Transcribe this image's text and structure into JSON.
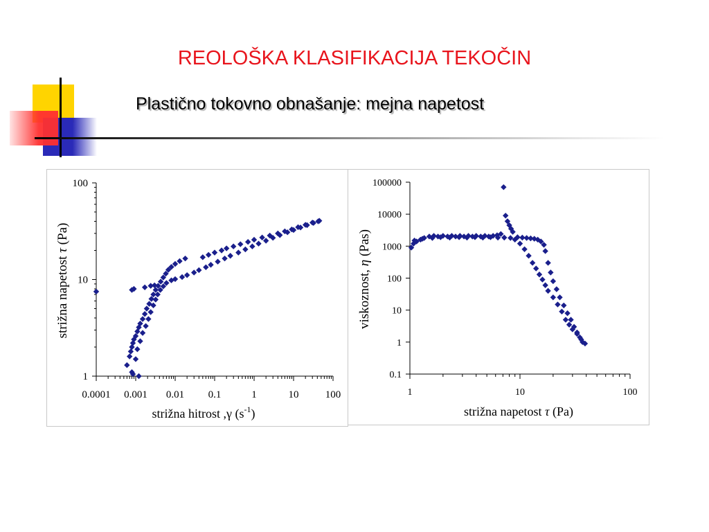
{
  "slide": {
    "title": "REOLOŠKA KLASIFIKACIJA TEKOČIN",
    "subtitle": "Plastično tokovno obnašanje: mejna napetost"
  },
  "colors": {
    "title": "#e8141c",
    "marker": "#1a1f8c",
    "deco_yellow": "#ffd400",
    "deco_red": "#ff3030",
    "deco_blue": "#2a2ab8"
  },
  "chart_data": [
    {
      "type": "scatter",
      "scale": "log-log",
      "xlabel": "strižna hitrost ,γ (s-1)",
      "ylabel": "strižna napetost τ (Pa)",
      "xlim": [
        0.0001,
        100
      ],
      "ylim": [
        1,
        100
      ],
      "xticks": [
        "0.0001",
        "0.001",
        "0.01",
        "0.1",
        "1",
        "10",
        "100"
      ],
      "yticks": [
        "1",
        "10",
        "100"
      ],
      "grid": false,
      "series": [
        {
          "marker": "diamond",
          "points": [
            [
              0.0001,
              7.5
            ],
            [
              0.0008,
              7.8
            ],
            [
              0.0009,
              8.0
            ],
            [
              0.0017,
              8.3
            ],
            [
              0.0024,
              8.6
            ],
            [
              0.003,
              8.7
            ],
            [
              0.0006,
              1.3
            ],
            [
              0.0007,
              1.6
            ],
            [
              0.00075,
              1.8
            ],
            [
              0.0008,
              2.0
            ],
            [
              0.00085,
              2.2
            ],
            [
              0.0009,
              2.4
            ],
            [
              0.001,
              2.6
            ],
            [
              0.0011,
              2.9
            ],
            [
              0.0012,
              3.2
            ],
            [
              0.0013,
              3.5
            ],
            [
              0.0015,
              3.9
            ],
            [
              0.0017,
              4.4
            ],
            [
              0.0019,
              5.0
            ],
            [
              0.0022,
              5.6
            ],
            [
              0.0025,
              6.3
            ],
            [
              0.0028,
              7.0
            ],
            [
              0.0032,
              7.8
            ],
            [
              0.0037,
              8.6
            ],
            [
              0.0043,
              9.5
            ],
            [
              0.005,
              10.5
            ],
            [
              0.0058,
              11.5
            ],
            [
              0.0067,
              12.6
            ],
            [
              0.008,
              13.5
            ],
            [
              0.01,
              14.5
            ],
            [
              0.013,
              15.5
            ],
            [
              0.018,
              16.5
            ],
            [
              0.0008,
              1.1
            ],
            [
              0.00085,
              1.05
            ],
            [
              0.0012,
              1.0
            ],
            [
              0.001,
              1.5
            ],
            [
              0.0011,
              1.9
            ],
            [
              0.0013,
              2.3
            ],
            [
              0.0015,
              2.8
            ],
            [
              0.0018,
              3.3
            ],
            [
              0.0021,
              3.9
            ],
            [
              0.0024,
              4.6
            ],
            [
              0.0028,
              5.4
            ],
            [
              0.0032,
              6.2
            ],
            [
              0.0036,
              7.0
            ],
            [
              0.0042,
              7.8
            ],
            [
              0.005,
              8.5
            ],
            [
              0.006,
              9.2
            ],
            [
              0.008,
              9.8
            ],
            [
              0.01,
              10.1
            ],
            [
              0.015,
              10.6
            ],
            [
              0.02,
              11.1
            ],
            [
              0.03,
              11.8
            ],
            [
              0.04,
              12.5
            ],
            [
              0.06,
              13.4
            ],
            [
              0.08,
              14.2
            ],
            [
              0.12,
              15.3
            ],
            [
              0.18,
              16.5
            ],
            [
              0.25,
              17.6
            ],
            [
              0.4,
              19.0
            ],
            [
              0.6,
              20.5
            ],
            [
              0.9,
              22.0
            ],
            [
              1.3,
              23.5
            ],
            [
              2.0,
              25.2
            ],
            [
              3.0,
              27.0
            ],
            [
              4.5,
              28.8
            ],
            [
              7.0,
              30.8
            ],
            [
              10,
              32.5
            ],
            [
              15,
              34.5
            ],
            [
              22,
              36.5
            ],
            [
              32,
              38.5
            ],
            [
              45,
              40.5
            ],
            [
              0.05,
              17.0
            ],
            [
              0.07,
              18.0
            ],
            [
              0.1,
              19.0
            ],
            [
              0.15,
              20.0
            ],
            [
              0.2,
              21.0
            ],
            [
              0.3,
              22.0
            ],
            [
              0.45,
              23.2
            ],
            [
              0.7,
              24.5
            ],
            [
              1.0,
              25.8
            ],
            [
              1.6,
              27.2
            ],
            [
              2.5,
              28.5
            ],
            [
              4.0,
              30.0
            ],
            [
              6.0,
              31.5
            ],
            [
              9.0,
              33.0
            ],
            [
              13,
              34.8
            ],
            [
              20,
              36.8
            ],
            [
              30,
              38.8
            ],
            [
              42,
              40.0
            ]
          ]
        }
      ]
    },
    {
      "type": "scatter",
      "scale": "log-log",
      "xlabel": "strižna napetost τ (Pa)",
      "ylabel": "viskoznost, η (Pas)",
      "xlim": [
        1,
        100
      ],
      "ylim": [
        0.1,
        100000
      ],
      "xticks": [
        "1",
        "10",
        "100"
      ],
      "yticks": [
        "0.1",
        "1",
        "10",
        "100",
        "1000",
        "10000",
        "100000"
      ],
      "grid": false,
      "series": [
        {
          "marker": "diamond",
          "points": [
            [
              1.03,
              900
            ],
            [
              1.08,
              1200
            ],
            [
              1.15,
              1400
            ],
            [
              1.25,
              1600
            ],
            [
              1.35,
              1800
            ],
            [
              1.5,
              2000
            ],
            [
              1.65,
              2100
            ],
            [
              1.8,
              2000
            ],
            [
              2.0,
              2100
            ],
            [
              2.2,
              2000
            ],
            [
              2.4,
              2100
            ],
            [
              2.6,
              2000
            ],
            [
              2.85,
              2100
            ],
            [
              3.1,
              2000
            ],
            [
              3.4,
              2100
            ],
            [
              3.7,
              2000
            ],
            [
              4.0,
              2100
            ],
            [
              4.4,
              2000
            ],
            [
              4.8,
              2100
            ],
            [
              5.2,
              2000
            ],
            [
              5.7,
              2100
            ],
            [
              6.2,
              2200
            ],
            [
              6.7,
              2400
            ],
            [
              7.1,
              70000
            ],
            [
              7.4,
              9000
            ],
            [
              7.7,
              6000
            ],
            [
              8.0,
              4500
            ],
            [
              8.3,
              3500
            ],
            [
              8.6,
              2800
            ],
            [
              1.1,
              1500
            ],
            [
              1.3,
              1700
            ],
            [
              1.6,
              1800
            ],
            [
              1.9,
              1900
            ],
            [
              2.3,
              1850
            ],
            [
              2.8,
              1900
            ],
            [
              3.3,
              1850
            ],
            [
              3.9,
              1900
            ],
            [
              4.6,
              1850
            ],
            [
              5.4,
              1900
            ],
            [
              6.3,
              1850
            ],
            [
              7.2,
              1850
            ],
            [
              8.2,
              1800
            ],
            [
              9.0,
              1600
            ],
            [
              10,
              1200
            ],
            [
              11,
              800
            ],
            [
              12,
              500
            ],
            [
              13,
              300
            ],
            [
              14,
              200
            ],
            [
              15,
              130
            ],
            [
              16,
              90
            ],
            [
              17,
              60
            ],
            [
              18,
              40
            ],
            [
              20,
              25
            ],
            [
              22,
              15
            ],
            [
              24,
              9
            ],
            [
              26,
              5
            ],
            [
              28,
              3.5
            ],
            [
              30,
              2.5
            ],
            [
              33,
              1.8
            ],
            [
              36,
              1.2
            ],
            [
              39,
              0.9
            ],
            [
              9.5,
              1900
            ],
            [
              10.5,
              1850
            ],
            [
              11.5,
              1800
            ],
            [
              12.5,
              1750
            ],
            [
              13.5,
              1700
            ],
            [
              14.5,
              1600
            ],
            [
              15.5,
              1400
            ],
            [
              16.5,
              1100
            ],
            [
              17,
              700
            ],
            [
              18,
              300
            ],
            [
              19,
              150
            ],
            [
              20,
              80
            ],
            [
              21.5,
              45
            ],
            [
              23,
              25
            ],
            [
              25,
              14
            ],
            [
              27,
              8
            ],
            [
              29,
              5
            ],
            [
              31,
              3
            ],
            [
              33,
              2
            ],
            [
              35,
              1.4
            ],
            [
              37,
              1.0
            ]
          ]
        }
      ]
    }
  ]
}
